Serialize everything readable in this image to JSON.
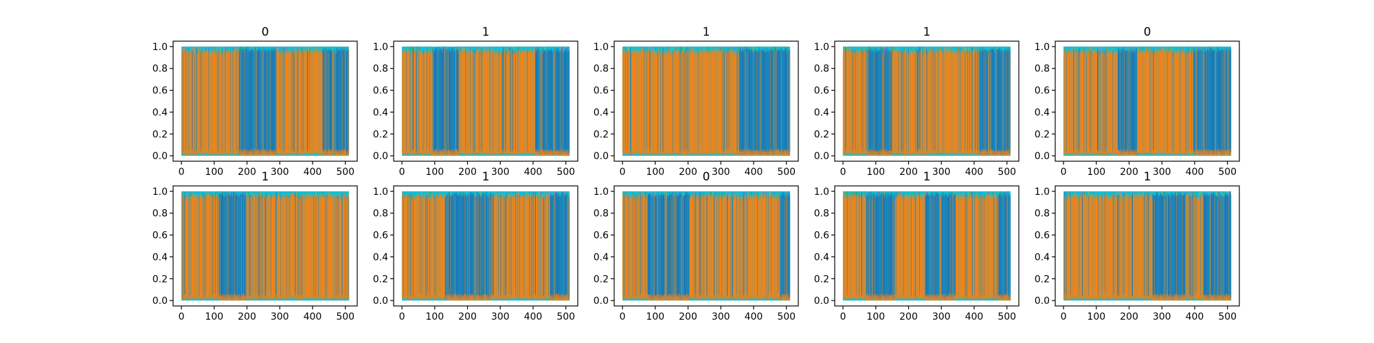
{
  "chart_data": {
    "type": "area",
    "layout": "2 rows x 5 columns of small multiples",
    "x_ticks": [
      "0",
      "100",
      "200",
      "300",
      "400",
      "500"
    ],
    "y_ticks": [
      "0.0",
      "0.2",
      "0.4",
      "0.6",
      "0.8",
      "1.0"
    ],
    "xlim": [
      0,
      511
    ],
    "ylim": [
      0,
      1
    ],
    "grid": false,
    "legend": "none",
    "colors": {
      "blue": "#1f77b4",
      "orange": "#ff7f0e",
      "cyan": "#17becf",
      "olive": "#bcbd22",
      "green": "#2ca02c",
      "purple": "#9467bd",
      "pink": "#e377c2",
      "gray": "#7f7f7f"
    },
    "panels": [
      {
        "title": "0",
        "dominant_orange_ranges": [
          [
            0,
            175
          ],
          [
            290,
            430
          ]
        ]
      },
      {
        "title": "1",
        "dominant_orange_ranges": [
          [
            0,
            95
          ],
          [
            175,
            405
          ]
        ]
      },
      {
        "title": "1",
        "dominant_orange_ranges": [
          [
            0,
            355
          ]
        ]
      },
      {
        "title": "1",
        "dominant_orange_ranges": [
          [
            0,
            75
          ],
          [
            150,
            415
          ]
        ]
      },
      {
        "title": "0",
        "dominant_orange_ranges": [
          [
            0,
            165
          ],
          [
            225,
            395
          ]
        ]
      },
      {
        "title": "1",
        "dominant_orange_ranges": [
          [
            0,
            115
          ],
          [
            200,
            510
          ]
        ]
      },
      {
        "title": "1",
        "dominant_orange_ranges": [
          [
            0,
            130
          ],
          [
            280,
            450
          ]
        ]
      },
      {
        "title": "0",
        "dominant_orange_ranges": [
          [
            0,
            75
          ],
          [
            205,
            480
          ]
        ]
      },
      {
        "title": "1",
        "dominant_orange_ranges": [
          [
            0,
            70
          ],
          [
            160,
            250
          ],
          [
            345,
            470
          ]
        ]
      },
      {
        "title": "1",
        "dominant_orange_ranges": [
          [
            0,
            270
          ],
          [
            375,
            425
          ]
        ]
      }
    ]
  }
}
